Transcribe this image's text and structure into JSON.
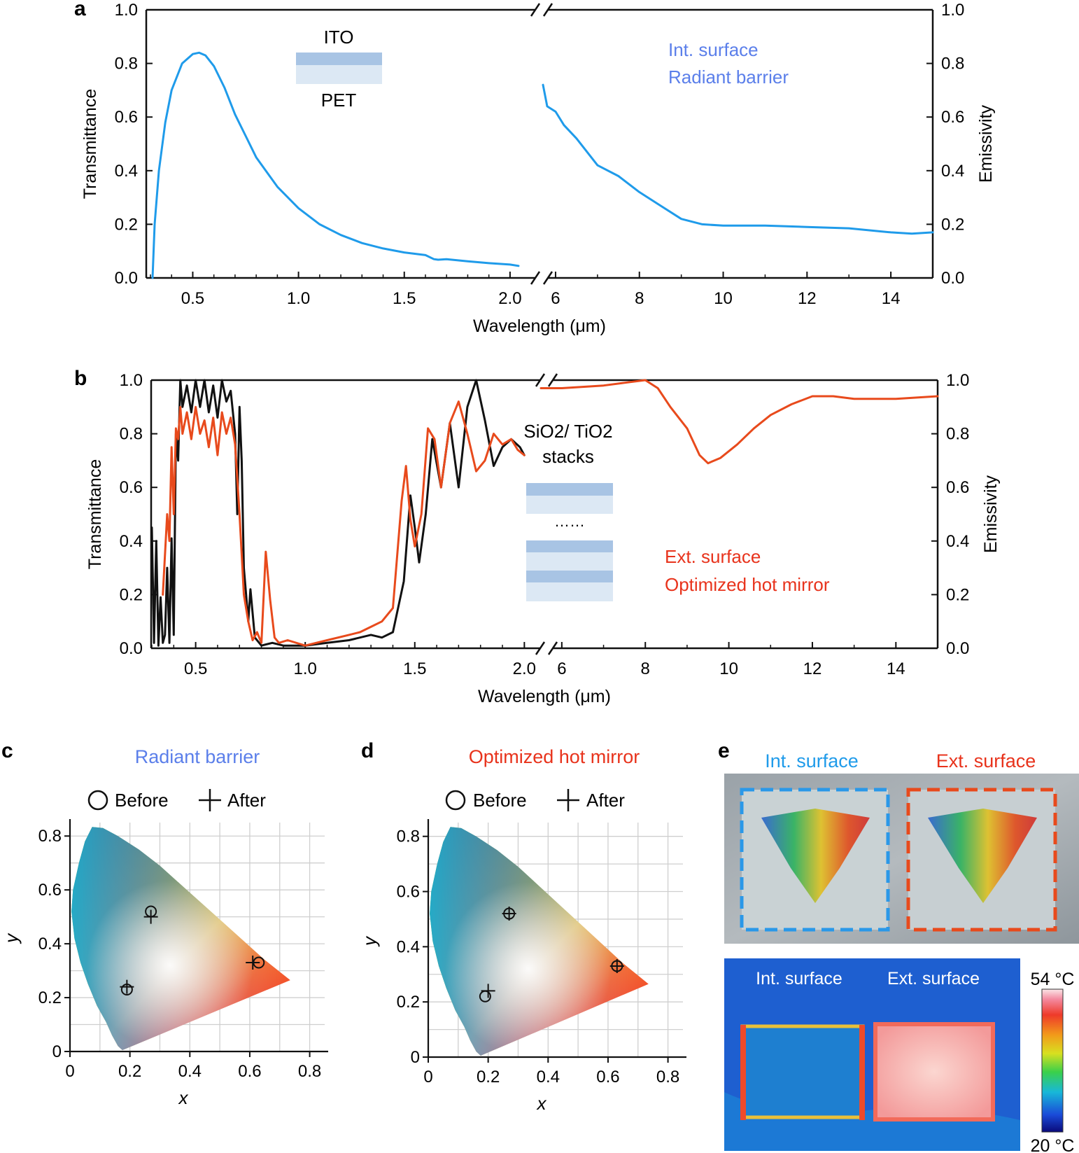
{
  "panels": {
    "a": {
      "label": "a"
    },
    "b": {
      "label": "b"
    },
    "c": {
      "label": "c",
      "title": "Radiant barrier",
      "legend_before": "Before",
      "legend_after": "After"
    },
    "d": {
      "label": "d",
      "title": "Optimized hot mirror",
      "legend_before": "Before",
      "legend_after": "After"
    },
    "e": {
      "label": "e",
      "photo_left_label": "Int. surface",
      "photo_right_label": "Ext. surface",
      "thermal_left_label": "Int. surface",
      "thermal_right_label": "Ext. surface",
      "colorbar_max": "54 °C",
      "colorbar_min": "20 °C"
    }
  },
  "colors": {
    "blue": "#1f9bea",
    "red": "#e84a1c",
    "black": "#111111",
    "blue_text": "#5b7fea",
    "red_text": "#e8331c"
  },
  "chart_data": [
    {
      "id": "a",
      "type": "line",
      "xlabel": "Wavelength (μm)",
      "ylabel_left": "Transmittance",
      "ylabel_right": "Emissivity",
      "ylim": [
        0,
        1.0
      ],
      "yticks": [
        "0.0",
        "0.2",
        "0.4",
        "0.6",
        "0.8",
        "1.0"
      ],
      "segments": [
        {
          "xlim": [
            0.3,
            2.05
          ],
          "xticks": [
            "0.5",
            "1.0",
            "1.5",
            "2.0"
          ]
        },
        {
          "xlim": [
            5.6,
            15.0
          ],
          "xticks": [
            "6",
            "8",
            "10",
            "12",
            "14"
          ]
        }
      ],
      "inset_labels": {
        "top": "ITO",
        "bottom": "PET"
      },
      "legend": [
        "Int. surface",
        "Radiant barrier"
      ],
      "series": [
        {
          "name": "Transmittance (ITO/PET)",
          "segment": 0,
          "x": [
            0.31,
            0.32,
            0.34,
            0.37,
            0.4,
            0.45,
            0.5,
            0.53,
            0.56,
            0.6,
            0.65,
            0.7,
            0.75,
            0.8,
            0.9,
            1.0,
            1.1,
            1.2,
            1.3,
            1.4,
            1.5,
            1.6,
            1.64,
            1.66,
            1.7,
            1.8,
            1.9,
            2.0,
            2.04
          ],
          "y": [
            0.0,
            0.2,
            0.4,
            0.58,
            0.7,
            0.8,
            0.835,
            0.84,
            0.83,
            0.79,
            0.71,
            0.61,
            0.53,
            0.45,
            0.34,
            0.26,
            0.2,
            0.16,
            0.13,
            0.11,
            0.095,
            0.085,
            0.07,
            0.068,
            0.07,
            0.062,
            0.055,
            0.05,
            0.045
          ]
        },
        {
          "name": "Emissivity (Radiant barrier)",
          "segment": 1,
          "x": [
            5.7,
            5.8,
            6.0,
            6.2,
            6.5,
            7.0,
            7.5,
            8.0,
            8.5,
            9.0,
            9.5,
            10,
            11,
            12,
            13,
            14,
            14.5,
            15
          ],
          "y": [
            0.72,
            0.64,
            0.62,
            0.57,
            0.52,
            0.42,
            0.38,
            0.32,
            0.27,
            0.22,
            0.2,
            0.195,
            0.195,
            0.19,
            0.185,
            0.17,
            0.165,
            0.17
          ]
        }
      ]
    },
    {
      "id": "b",
      "type": "line",
      "xlabel": "Wavelength (μm)",
      "ylabel_left": "Transmittance",
      "ylabel_right": "Emissivity",
      "ylim": [
        0,
        1.0
      ],
      "yticks": [
        "0.0",
        "0.2",
        "0.4",
        "0.6",
        "0.8",
        "1.0"
      ],
      "segments": [
        {
          "xlim": [
            0.3,
            2.05
          ],
          "xticks": [
            "0.5",
            "1.0",
            "1.5",
            "2.0"
          ]
        },
        {
          "xlim": [
            5.6,
            15.0
          ],
          "xticks": [
            "6",
            "8",
            "10",
            "12",
            "14"
          ]
        }
      ],
      "inset_labels": {
        "top": "SiO2/ TiO2",
        "bottom": "stacks",
        "dots": "……"
      },
      "legend": [
        "Ext. surface",
        "Optimized hot mirror"
      ],
      "series": [
        {
          "name": "Transmittance (black)",
          "segment": 0,
          "x": [
            0.3,
            0.31,
            0.32,
            0.33,
            0.34,
            0.35,
            0.36,
            0.37,
            0.38,
            0.39,
            0.4,
            0.41,
            0.42,
            0.43,
            0.44,
            0.46,
            0.48,
            0.5,
            0.52,
            0.54,
            0.56,
            0.58,
            0.6,
            0.62,
            0.64,
            0.66,
            0.68,
            0.69,
            0.7,
            0.71,
            0.72,
            0.73,
            0.74,
            0.75,
            0.77,
            0.8,
            0.85,
            0.9,
            1.0,
            1.1,
            1.2,
            1.3,
            1.35,
            1.4,
            1.45,
            1.48,
            1.5,
            1.52,
            1.55,
            1.58,
            1.62,
            1.66,
            1.7,
            1.74,
            1.78,
            1.82,
            1.86,
            1.9,
            1.94,
            1.98,
            2.0
          ],
          "y": [
            0.45,
            0.02,
            0.4,
            0.01,
            0.19,
            0.02,
            0.05,
            0.3,
            0.02,
            0.41,
            0.05,
            0.8,
            0.7,
            1.0,
            0.9,
            0.98,
            0.88,
            1.0,
            0.9,
            1.0,
            0.88,
            0.98,
            0.86,
            1.0,
            0.92,
            0.96,
            0.8,
            0.5,
            0.9,
            0.7,
            0.3,
            0.2,
            0.1,
            0.22,
            0.04,
            0.01,
            0.02,
            0.01,
            0.01,
            0.02,
            0.03,
            0.05,
            0.04,
            0.06,
            0.25,
            0.57,
            0.45,
            0.32,
            0.5,
            0.78,
            0.6,
            0.84,
            0.6,
            0.9,
            1.0,
            0.85,
            0.68,
            0.75,
            0.78,
            0.75,
            0.72
          ]
        },
        {
          "name": "Transmittance (red)",
          "segment": 0,
          "x": [
            0.35,
            0.37,
            0.38,
            0.39,
            0.4,
            0.41,
            0.42,
            0.43,
            0.44,
            0.46,
            0.48,
            0.5,
            0.52,
            0.54,
            0.56,
            0.58,
            0.6,
            0.62,
            0.64,
            0.66,
            0.68,
            0.7,
            0.72,
            0.74,
            0.76,
            0.78,
            0.8,
            0.82,
            0.84,
            0.86,
            0.88,
            0.92,
            1.0,
            1.1,
            1.2,
            1.25,
            1.3,
            1.35,
            1.4,
            1.44,
            1.46,
            1.48,
            1.5,
            1.53,
            1.56,
            1.59,
            1.62,
            1.66,
            1.7,
            1.74,
            1.78,
            1.82,
            1.86,
            1.9,
            1.94,
            1.97,
            2.0
          ],
          "y": [
            0.2,
            0.5,
            0.4,
            0.75,
            0.5,
            0.82,
            0.78,
            0.9,
            0.8,
            0.88,
            0.78,
            0.9,
            0.8,
            0.85,
            0.75,
            0.86,
            0.72,
            0.88,
            0.8,
            0.86,
            0.76,
            0.5,
            0.2,
            0.1,
            0.03,
            0.06,
            0.02,
            0.36,
            0.18,
            0.04,
            0.02,
            0.03,
            0.01,
            0.03,
            0.05,
            0.06,
            0.08,
            0.1,
            0.15,
            0.55,
            0.68,
            0.48,
            0.38,
            0.5,
            0.82,
            0.78,
            0.6,
            0.84,
            0.92,
            0.8,
            0.66,
            0.7,
            0.8,
            0.76,
            0.78,
            0.74,
            0.72
          ]
        },
        {
          "name": "Emissivity (Optimized hot mirror)",
          "segment": 1,
          "x": [
            5.5,
            6.0,
            7.0,
            7.5,
            8.0,
            8.3,
            8.6,
            9.0,
            9.3,
            9.5,
            9.8,
            10.2,
            10.6,
            11.0,
            11.5,
            12.0,
            12.5,
            13.0,
            14.0,
            15.0
          ],
          "y": [
            0.97,
            0.97,
            0.98,
            0.99,
            1.0,
            0.97,
            0.9,
            0.82,
            0.72,
            0.69,
            0.71,
            0.76,
            0.82,
            0.87,
            0.91,
            0.94,
            0.94,
            0.93,
            0.93,
            0.94
          ]
        }
      ]
    },
    {
      "id": "c",
      "type": "scatter",
      "title": "Radiant barrier",
      "xlabel": "x",
      "ylabel": "y",
      "xlim": [
        0,
        0.85
      ],
      "ylim": [
        0,
        0.85
      ],
      "xticks": [
        "0",
        "0.2",
        "0.4",
        "0.6",
        "0.8"
      ],
      "yticks": [
        "0",
        "0.2",
        "0.4",
        "0.6",
        "0.8"
      ],
      "series": [
        {
          "name": "Before",
          "marker": "circle",
          "x": [
            0.27,
            0.19,
            0.63
          ],
          "y": [
            0.52,
            0.23,
            0.33
          ]
        },
        {
          "name": "After",
          "marker": "plus",
          "x": [
            0.27,
            0.19,
            0.61
          ],
          "y": [
            0.5,
            0.24,
            0.33
          ]
        }
      ]
    },
    {
      "id": "d",
      "type": "scatter",
      "title": "Optimized hot mirror",
      "xlabel": "x",
      "ylabel": "y",
      "xlim": [
        0,
        0.85
      ],
      "ylim": [
        0,
        0.85
      ],
      "xticks": [
        "0",
        "0.2",
        "0.4",
        "0.6",
        "0.8"
      ],
      "yticks": [
        "0",
        "0.2",
        "0.4",
        "0.6",
        "0.8"
      ],
      "series": [
        {
          "name": "Before",
          "marker": "circle",
          "x": [
            0.27,
            0.19,
            0.63
          ],
          "y": [
            0.52,
            0.22,
            0.33
          ]
        },
        {
          "name": "After",
          "marker": "plus",
          "x": [
            0.27,
            0.2,
            0.63
          ],
          "y": [
            0.52,
            0.24,
            0.33
          ]
        }
      ]
    }
  ]
}
